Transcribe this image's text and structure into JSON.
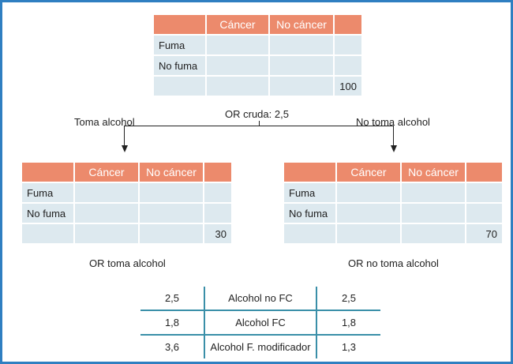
{
  "headers": {
    "cancer": "Cáncer",
    "no_cancer": "No cáncer"
  },
  "rows": {
    "smoker": "Fuma",
    "non_smoker": "No fuma"
  },
  "top_table": {
    "total": "100"
  },
  "crude": "OR cruda: 2,5",
  "left_branch": {
    "label": "Toma alcohol",
    "total": "30",
    "or_label": "OR toma alcohol"
  },
  "right_branch": {
    "label": "No toma alcohol",
    "total": "70",
    "or_label": "OR no toma alcohol"
  },
  "summary": [
    {
      "left": "2,5",
      "label": "Alcohol no FC",
      "right": "2,5"
    },
    {
      "left": "1,8",
      "label": "Alcohol FC",
      "right": "1,8"
    },
    {
      "left": "3,6",
      "label": "Alcohol F. modificador",
      "right": "1,3"
    }
  ],
  "colors": {
    "header": "#ec8a6c",
    "cell": "#dde9ef",
    "frame": "#2f7fc1",
    "rule": "#3a8fa8"
  }
}
